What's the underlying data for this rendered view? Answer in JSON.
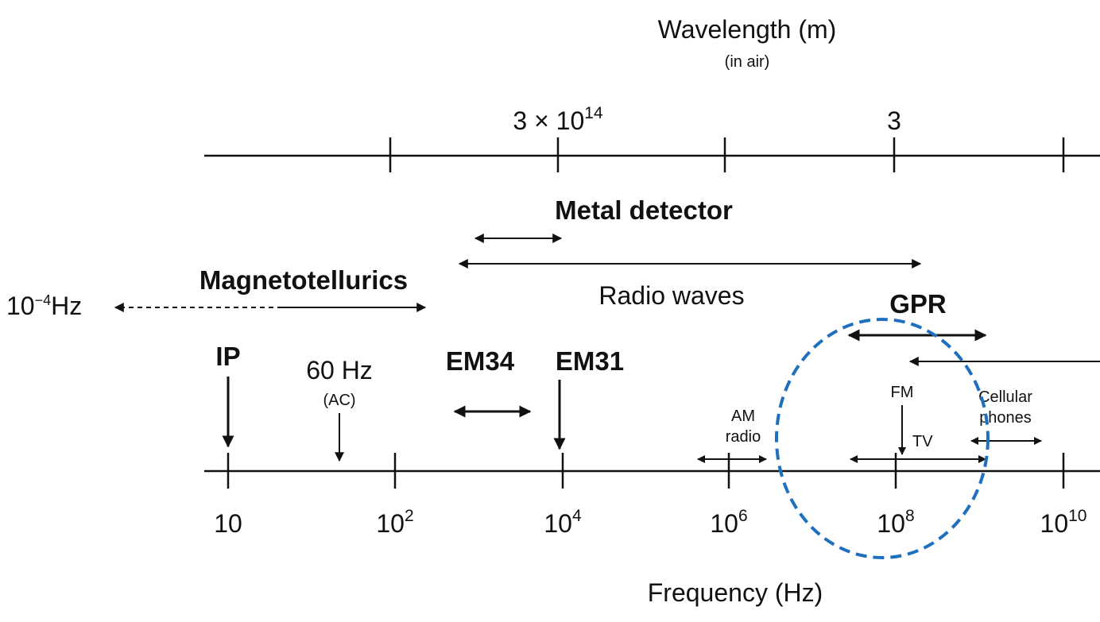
{
  "wavelength_axis": {
    "title": "Wavelength (m)",
    "subtitle": "(in air)",
    "labels": [
      {
        "base": "3 × 10",
        "exp": "14"
      },
      {
        "base": "3"
      }
    ]
  },
  "frequency_axis": {
    "title": "Frequency (Hz)",
    "labels": [
      {
        "base": "10"
      },
      {
        "base": "10",
        "exp": "2"
      },
      {
        "base": "10",
        "exp": "4"
      },
      {
        "base": "10",
        "exp": "6"
      },
      {
        "base": "10",
        "exp": "8"
      },
      {
        "base": "10",
        "exp": "10"
      }
    ]
  },
  "bands": {
    "metal_detector": "Metal detector",
    "radio_waves": "Radio waves",
    "magnetotellurics": "Magnetotellurics",
    "low_limit": {
      "base": "10",
      "exp": "−4",
      "unit": "Hz"
    },
    "gpr": "GPR",
    "ip": "IP",
    "ac": {
      "label": "60 Hz",
      "note": "(AC)"
    },
    "em34": "EM34",
    "em31": "EM31",
    "am_radio": [
      "AM",
      "radio"
    ],
    "fm": "FM",
    "tv": "TV",
    "cellular": [
      "Cellular",
      "phones"
    ]
  }
}
